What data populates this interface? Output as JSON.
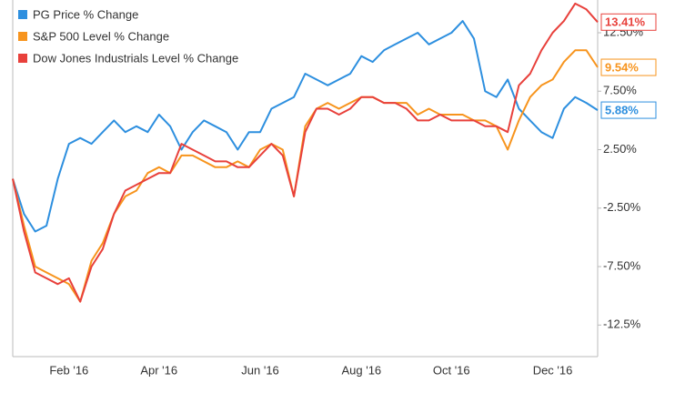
{
  "chart_data": {
    "type": "line",
    "categories": [
      null,
      null,
      null,
      null,
      null,
      "Feb '16",
      null,
      null,
      null,
      null,
      null,
      null,
      null,
      "Apr '16",
      null,
      null,
      null,
      null,
      null,
      null,
      null,
      null,
      "Jun '16",
      null,
      null,
      null,
      null,
      null,
      null,
      null,
      null,
      "Aug '16",
      null,
      null,
      null,
      null,
      null,
      null,
      null,
      "Oct '16",
      null,
      null,
      null,
      null,
      null,
      null,
      null,
      null,
      "Dec '16",
      null,
      null,
      null,
      null
    ],
    "series": [
      {
        "name": "PG Price % Change",
        "color": "#2d8fdf",
        "values": [
          0,
          -3,
          -4.5,
          -4,
          0,
          3,
          3.5,
          3,
          4,
          5,
          4,
          4.5,
          4,
          5.5,
          4.5,
          2.5,
          4,
          5,
          4.5,
          4,
          2.5,
          4,
          4,
          6,
          6.5,
          7,
          9,
          8.5,
          8,
          8.5,
          9,
          10.5,
          10,
          11,
          11.5,
          12,
          12.5,
          11.5,
          12,
          12.5,
          13.5,
          12,
          7.5,
          7,
          8.5,
          6,
          5,
          4,
          3.5,
          6,
          7,
          6.5,
          5.88
        ],
        "value_labels": [
          null,
          null,
          null,
          null,
          null,
          null,
          null,
          null,
          null,
          null,
          null,
          null,
          null,
          null,
          null,
          null,
          null,
          null,
          null,
          null,
          null,
          null,
          null,
          null,
          null,
          null,
          null,
          null,
          null,
          null,
          null,
          null,
          null,
          null,
          null,
          null,
          null,
          null,
          null,
          null,
          null,
          null,
          null,
          null,
          null,
          null,
          null,
          null,
          null,
          null,
          null,
          null,
          "5.88%"
        ]
      },
      {
        "name": "S&P 500 Level % Change",
        "color": "#f7941d",
        "values": [
          0,
          -4,
          -7.5,
          -8,
          -8.5,
          -9,
          -10.5,
          -7,
          -5.5,
          -3,
          -1.5,
          -1,
          0.5,
          1,
          0.5,
          2,
          2,
          1.5,
          1,
          1,
          1.5,
          1,
          2.5,
          3,
          2.5,
          -1.5,
          4.5,
          6,
          6.5,
          6,
          6.5,
          7,
          7,
          6.5,
          6.5,
          6.5,
          5.5,
          6,
          5.5,
          5.5,
          5.5,
          5,
          5,
          4.5,
          2.5,
          5,
          7,
          8,
          8.5,
          10,
          11,
          11,
          9.54
        ],
        "value_labels": [
          null,
          null,
          null,
          null,
          null,
          null,
          null,
          null,
          null,
          null,
          null,
          null,
          null,
          null,
          null,
          null,
          null,
          null,
          null,
          null,
          null,
          null,
          null,
          null,
          null,
          null,
          null,
          null,
          null,
          null,
          null,
          null,
          null,
          null,
          null,
          null,
          null,
          null,
          null,
          null,
          null,
          null,
          null,
          null,
          null,
          null,
          null,
          null,
          null,
          null,
          null,
          null,
          "9.54%"
        ]
      },
      {
        "name": "Dow Jones Industrials Level % Change",
        "color": "#e8403b",
        "values": [
          0,
          -4.5,
          -8,
          -8.5,
          -9,
          -8.5,
          -10.5,
          -7.5,
          -6,
          -3,
          -1,
          -0.5,
          0,
          0.5,
          0.5,
          3,
          2.5,
          2,
          1.5,
          1.5,
          1,
          1,
          2,
          3,
          2,
          -1.5,
          4,
          6,
          6,
          5.5,
          6,
          7,
          7,
          6.5,
          6.5,
          6,
          5,
          5,
          5.5,
          5,
          5,
          5,
          4.5,
          4.5,
          4,
          8,
          9,
          11,
          12.5,
          13.5,
          15,
          14.5,
          13.41
        ],
        "value_labels": [
          null,
          null,
          null,
          null,
          null,
          null,
          null,
          null,
          null,
          null,
          null,
          null,
          null,
          null,
          null,
          null,
          null,
          null,
          null,
          null,
          null,
          null,
          null,
          null,
          null,
          null,
          null,
          null,
          null,
          null,
          null,
          null,
          null,
          null,
          null,
          null,
          null,
          null,
          null,
          null,
          null,
          null,
          null,
          null,
          null,
          null,
          null,
          null,
          null,
          null,
          null,
          null,
          "13.41%"
        ]
      }
    ],
    "ylim": [
      -15.2,
      15.3
    ],
    "yticks": [
      {
        "value": 12.5,
        "label": "12.50%"
      },
      {
        "value": 7.5,
        "label": "7.50%"
      },
      {
        "value": 2.5,
        "label": "2.50%"
      },
      {
        "value": -2.5,
        "label": "-2.50%"
      },
      {
        "value": -7.5,
        "label": "-7.50%"
      },
      {
        "value": -12.5,
        "label": "-12.5%"
      }
    ],
    "grid": false,
    "legend": "top-left"
  }
}
